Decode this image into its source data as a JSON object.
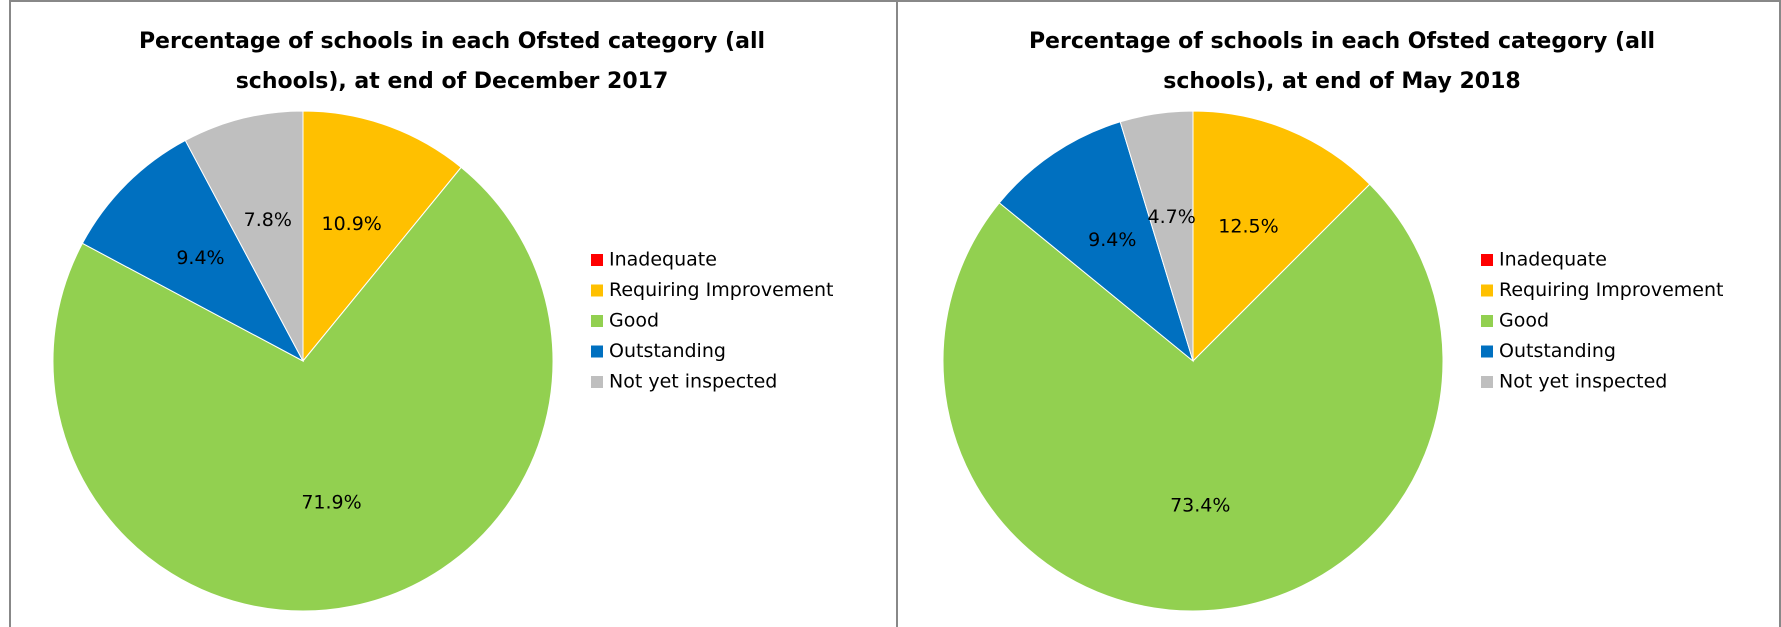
{
  "chart_data": [
    {
      "type": "pie",
      "title": "Percentage of schools in each Ofsted category (all schools), at end of December 2017",
      "categories": [
        "Inadequate",
        "Requiring Improvement",
        "Good",
        "Outstanding",
        "Not yet inspected"
      ],
      "values": [
        0.0,
        10.9,
        71.9,
        9.4,
        7.8
      ],
      "value_labels": [
        "0.0%",
        "10.9%",
        "71.9%",
        "9.4%",
        "7.8%"
      ],
      "colors": [
        "#ff0000",
        "#ffc000",
        "#92d050",
        "#0070c0",
        "#bfbfbf"
      ],
      "legend": "right"
    },
    {
      "type": "pie",
      "title": "Percentage of schools in each Ofsted category (all schools), at end of May 2018",
      "categories": [
        "Inadequate",
        "Requiring Improvement",
        "Good",
        "Outstanding",
        "Not yet inspected"
      ],
      "values": [
        0.0,
        12.5,
        73.4,
        9.4,
        4.7
      ],
      "value_labels": [
        "0.0%",
        "12.5%",
        "73.4%",
        "9.4%",
        "4.7%"
      ],
      "colors": [
        "#ff0000",
        "#ffc000",
        "#92d050",
        "#0070c0",
        "#bfbfbf"
      ],
      "legend": "right"
    }
  ]
}
